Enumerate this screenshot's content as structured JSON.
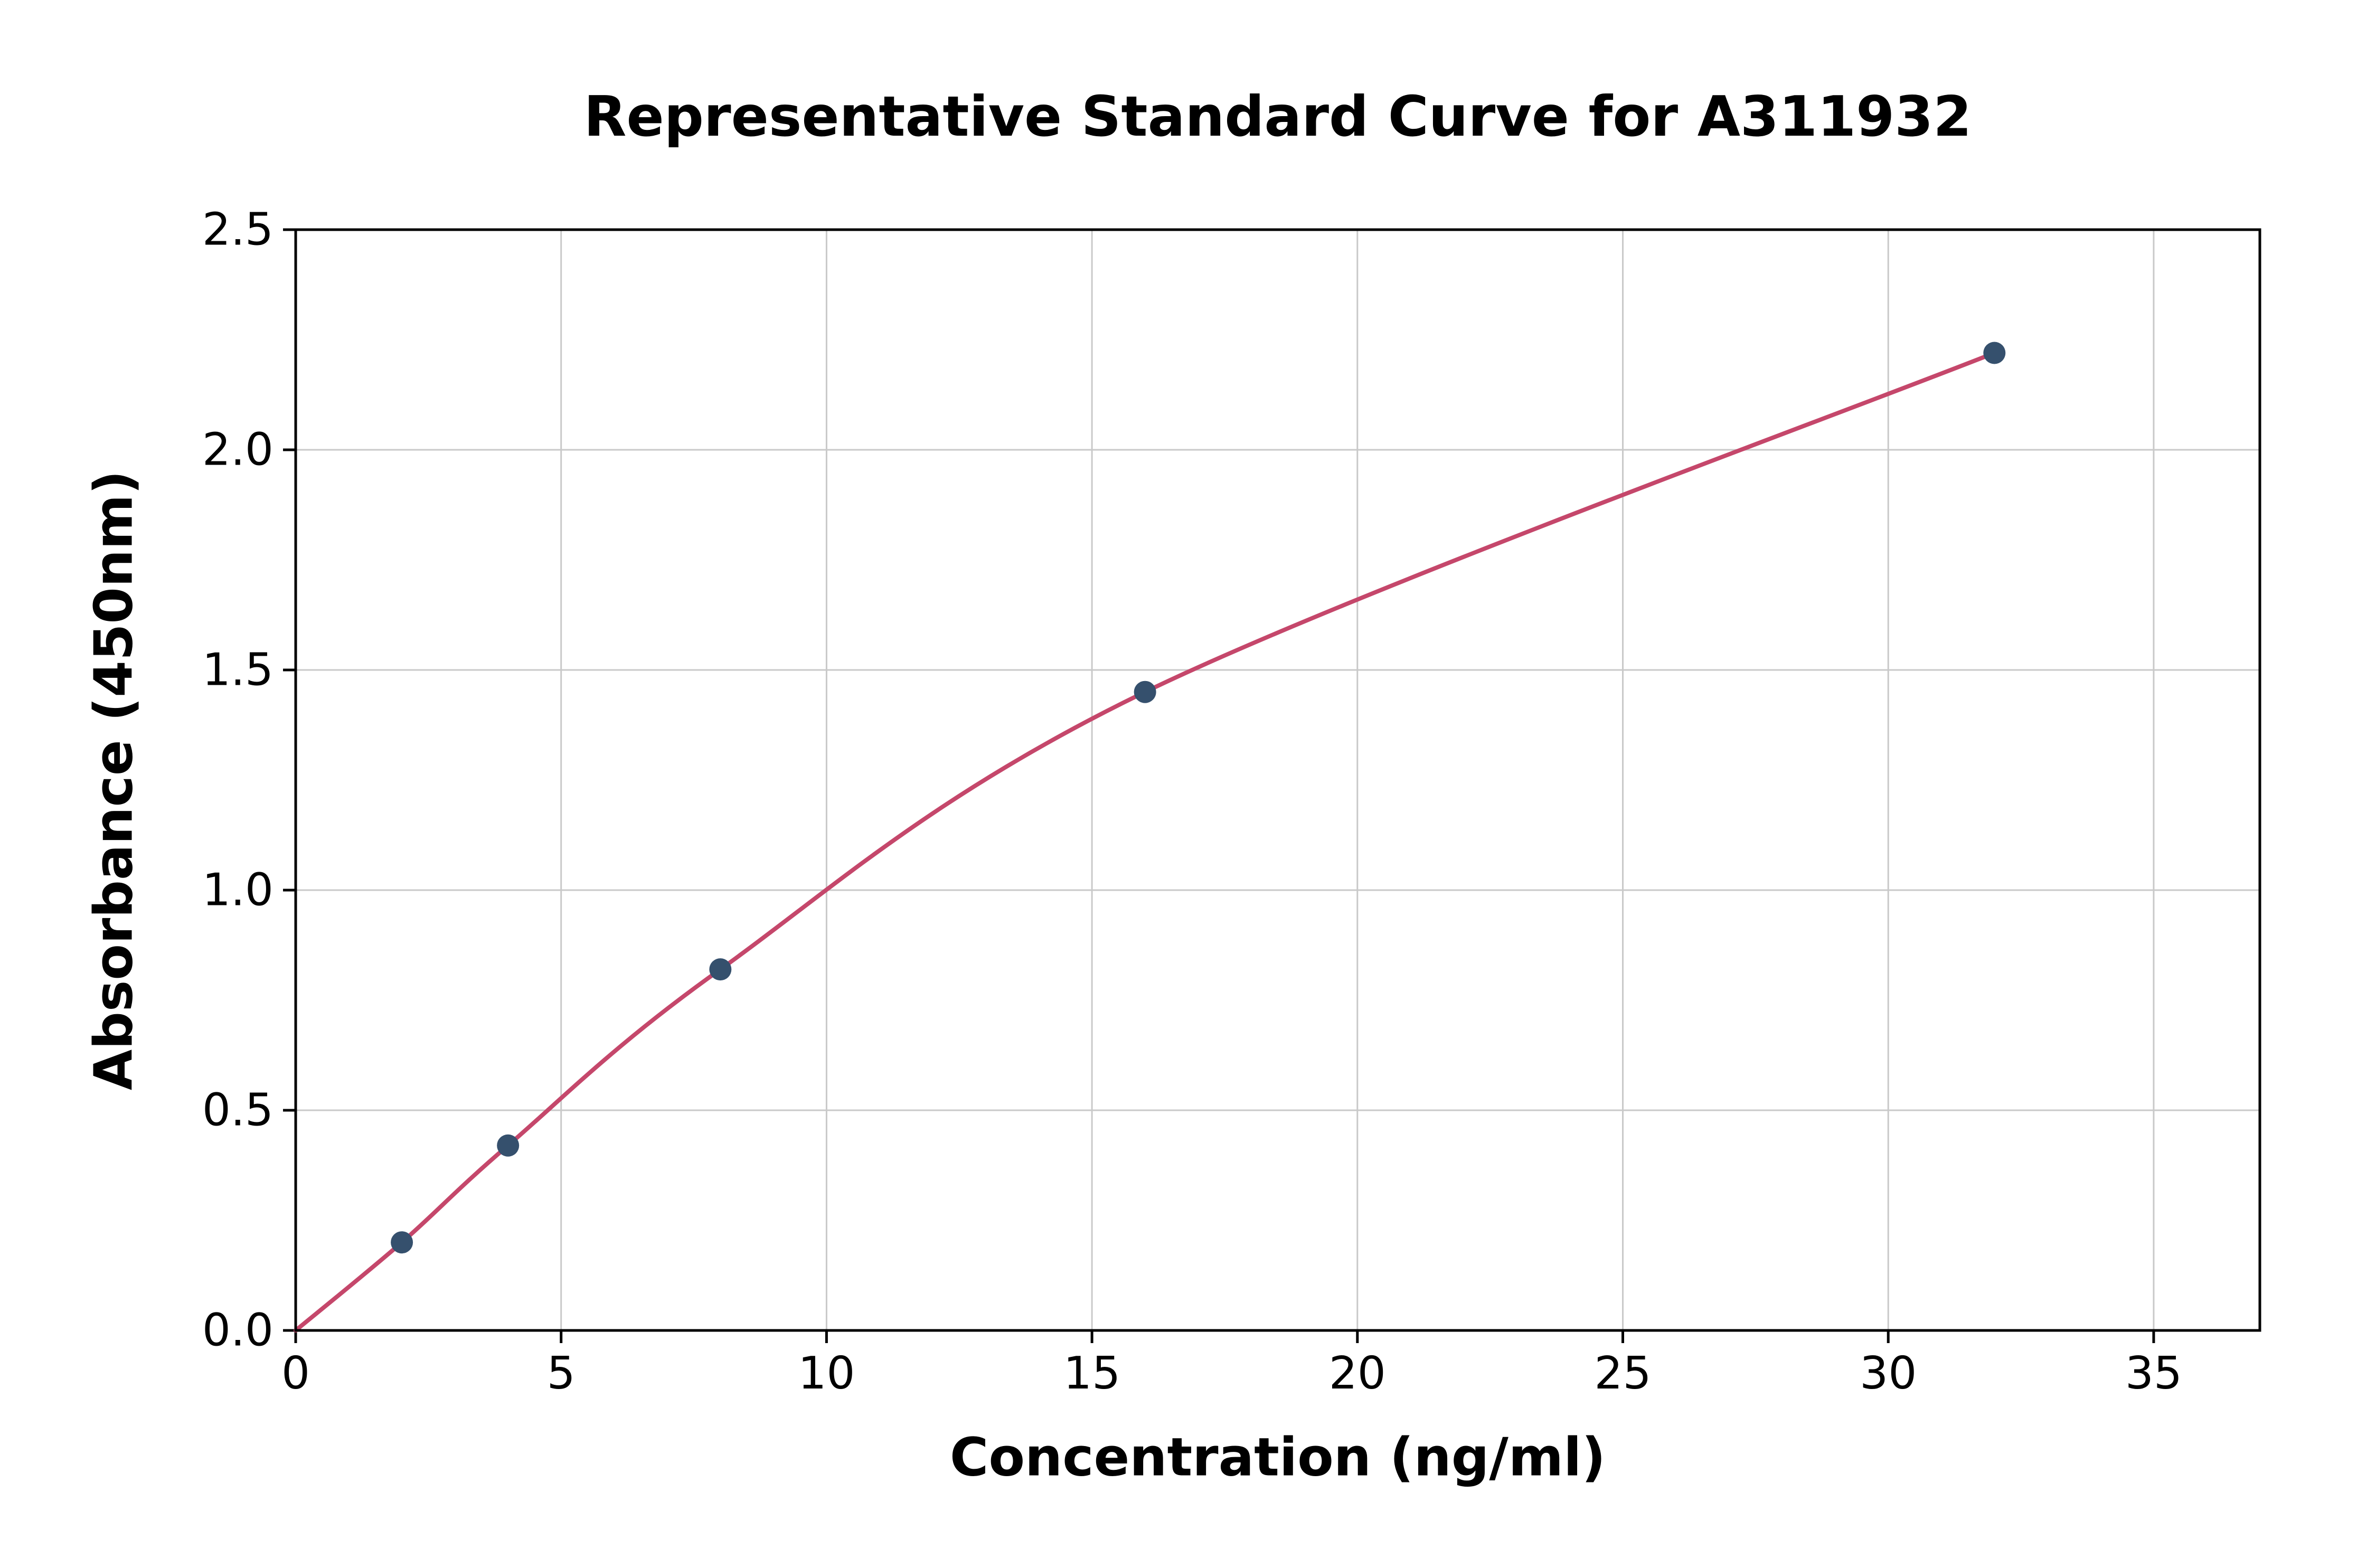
{
  "chart_data": {
    "type": "line",
    "title": "Representative Standard Curve for A311932",
    "xlabel": "Concentration (ng/ml)",
    "ylabel": "Absorbance (450nm)",
    "x": [
      0,
      2,
      4,
      8,
      16,
      32
    ],
    "y": [
      0.0,
      0.2,
      0.42,
      0.82,
      1.45,
      2.22
    ],
    "marker_x": [
      2,
      4,
      8,
      16,
      32
    ],
    "marker_y": [
      0.2,
      0.42,
      0.82,
      1.45,
      2.22
    ],
    "xlim": [
      0,
      37
    ],
    "ylim": [
      0,
      2.5
    ],
    "x_ticks": [
      0,
      5,
      10,
      15,
      20,
      25,
      30,
      35
    ],
    "y_ticks": [
      0.0,
      0.5,
      1.0,
      1.5,
      2.0,
      2.5
    ],
    "x_tick_labels": [
      "0",
      "5",
      "10",
      "15",
      "20",
      "25",
      "30",
      "35"
    ],
    "y_tick_labels": [
      "0.0",
      "0.5",
      "1.0",
      "1.5",
      "2.0",
      "2.5"
    ],
    "grid": true,
    "legend_position": "none",
    "colors": {
      "line": "#c5476b",
      "marker": "#35506d",
      "grid": "#c9c9c9",
      "spine": "#000000",
      "background": "#ffffff"
    }
  }
}
